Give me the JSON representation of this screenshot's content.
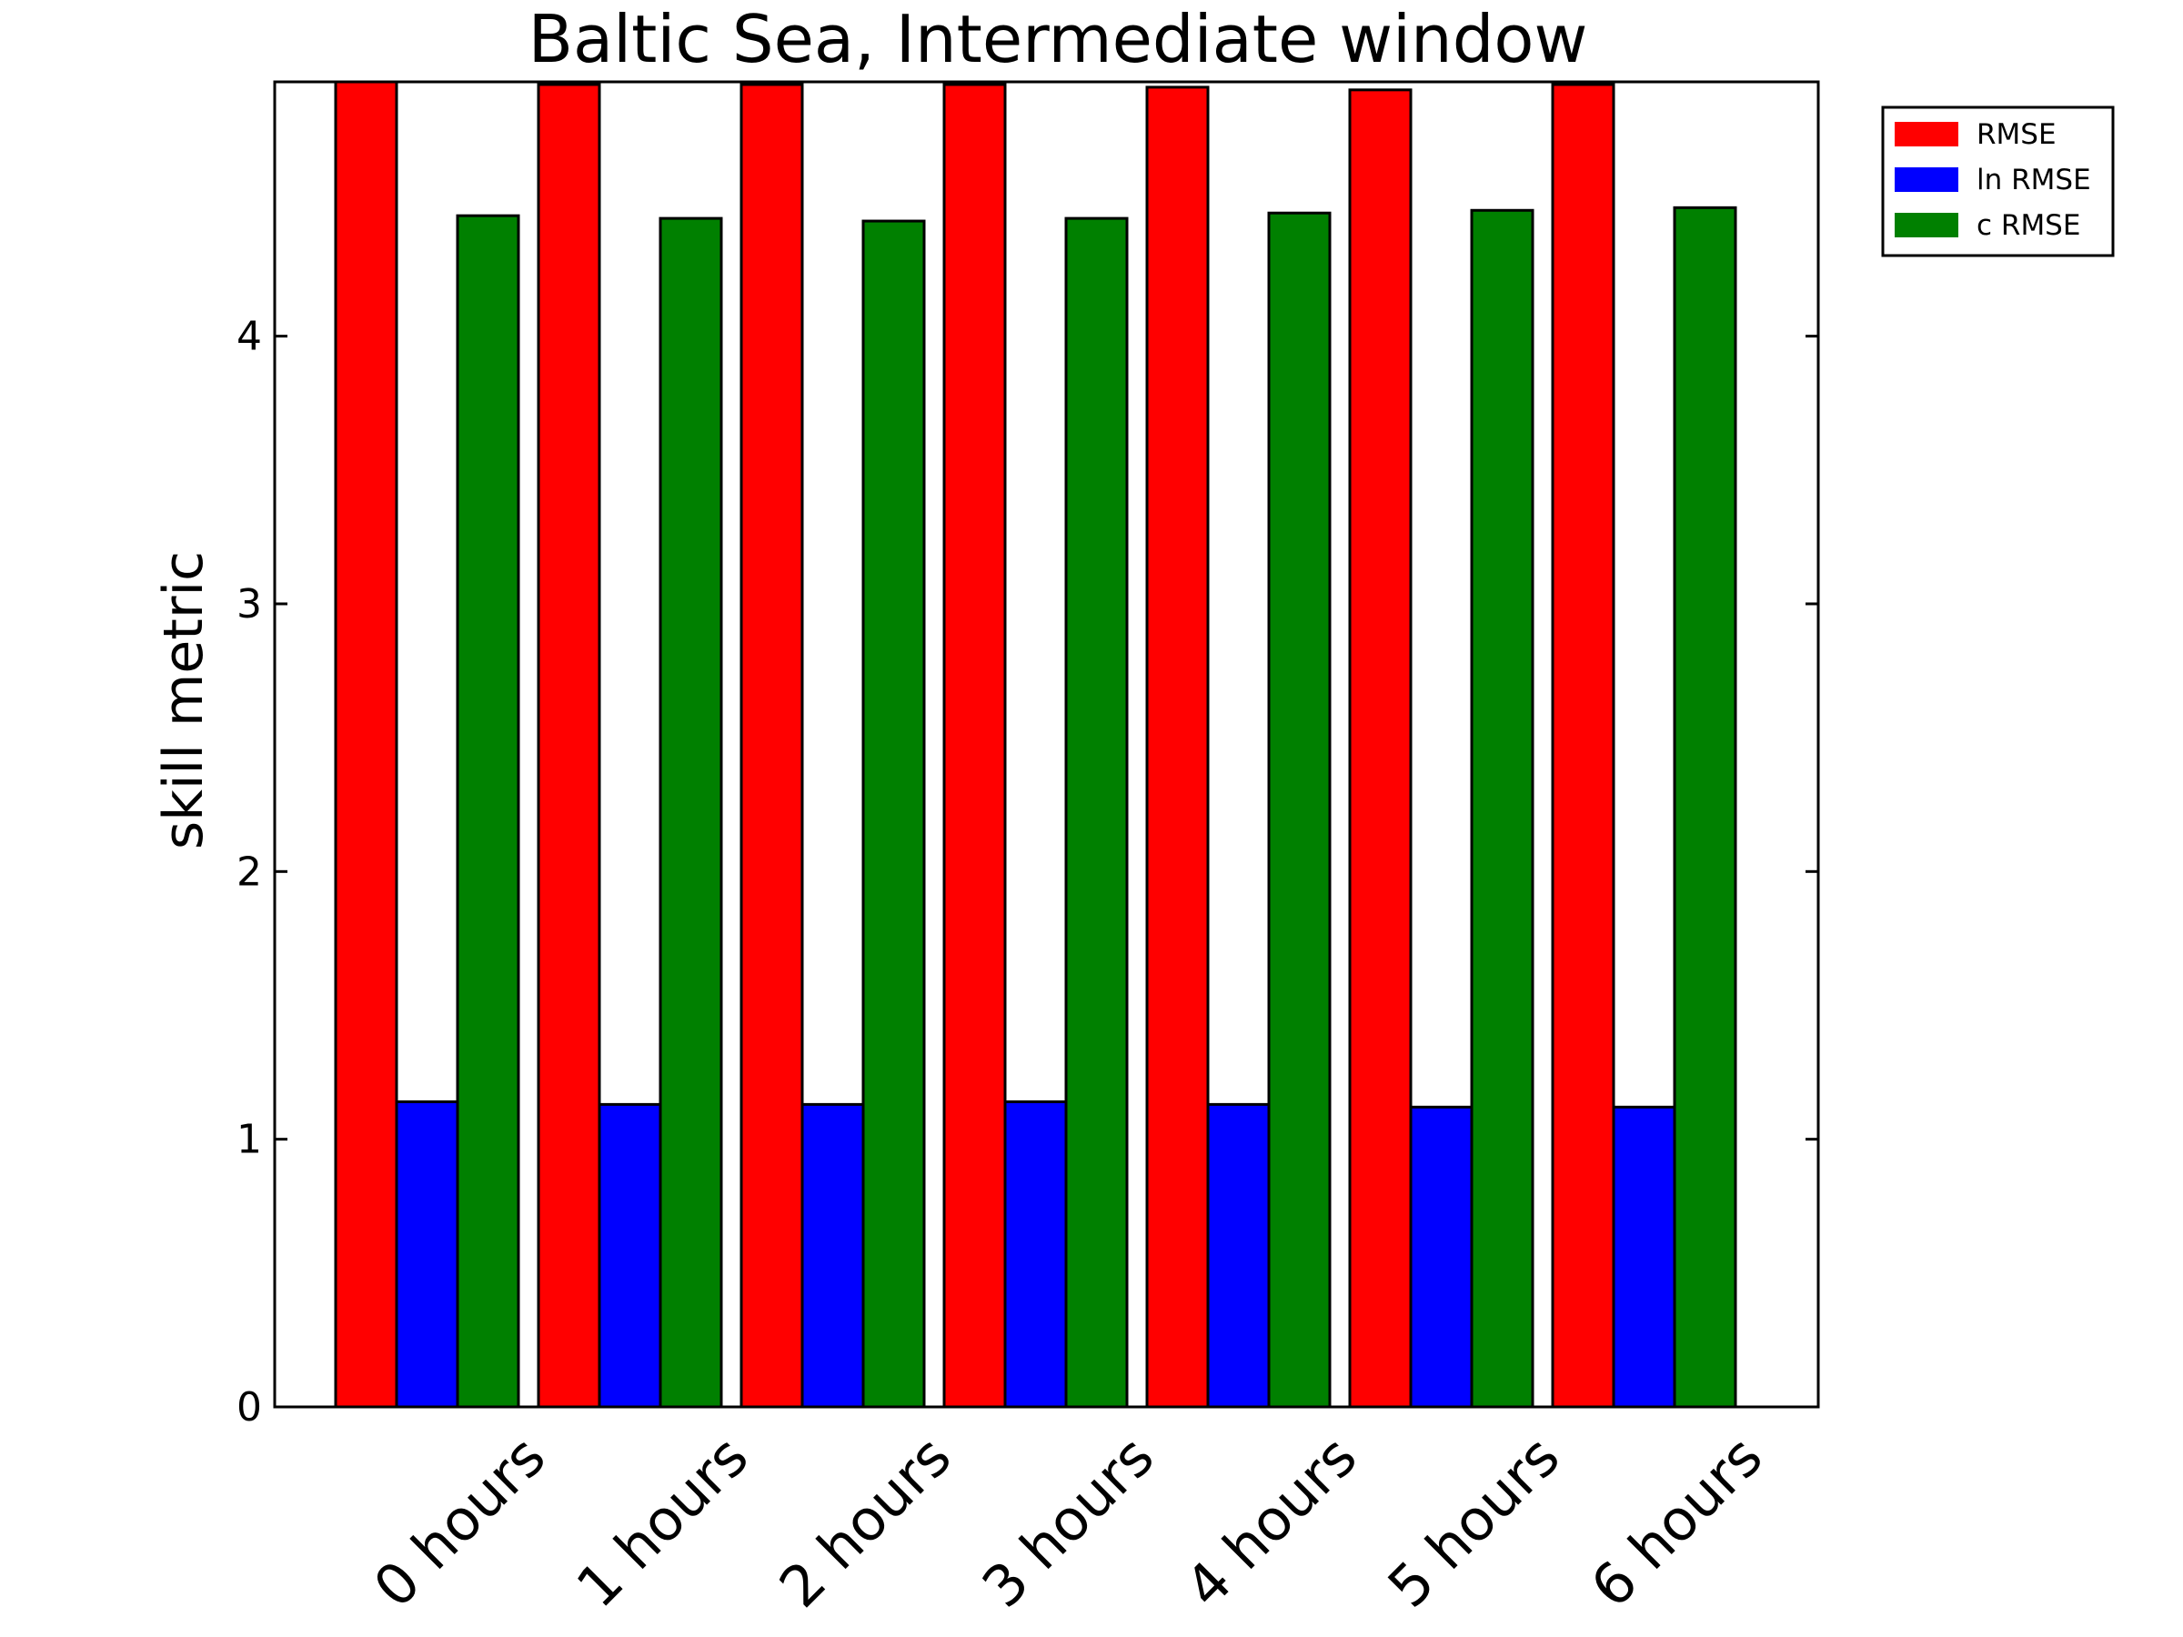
{
  "chart_data": {
    "type": "bar",
    "title": "Baltic Sea, Intermediate window",
    "xlabel": "",
    "ylabel": "skill metric",
    "categories": [
      "0 hours",
      "1 hours",
      "2 hours",
      "3 hours",
      "4 hours",
      "5 hours",
      "6 hours"
    ],
    "ylim": [
      0,
      4.95
    ],
    "yticks": [
      0,
      1,
      2,
      3,
      4
    ],
    "grid": false,
    "legend_position": "outside-top-right",
    "series": [
      {
        "name": "RMSE",
        "color": "#ff0000",
        "values": [
          4.95,
          4.94,
          4.94,
          4.94,
          4.93,
          4.92,
          4.94
        ]
      },
      {
        "name": "ln RMSE",
        "color": "#0000ff",
        "values": [
          1.14,
          1.13,
          1.13,
          1.14,
          1.13,
          1.12,
          1.12
        ]
      },
      {
        "name": "c RMSE",
        "color": "#008000",
        "values": [
          4.45,
          4.44,
          4.43,
          4.44,
          4.46,
          4.47,
          4.48
        ]
      }
    ]
  }
}
